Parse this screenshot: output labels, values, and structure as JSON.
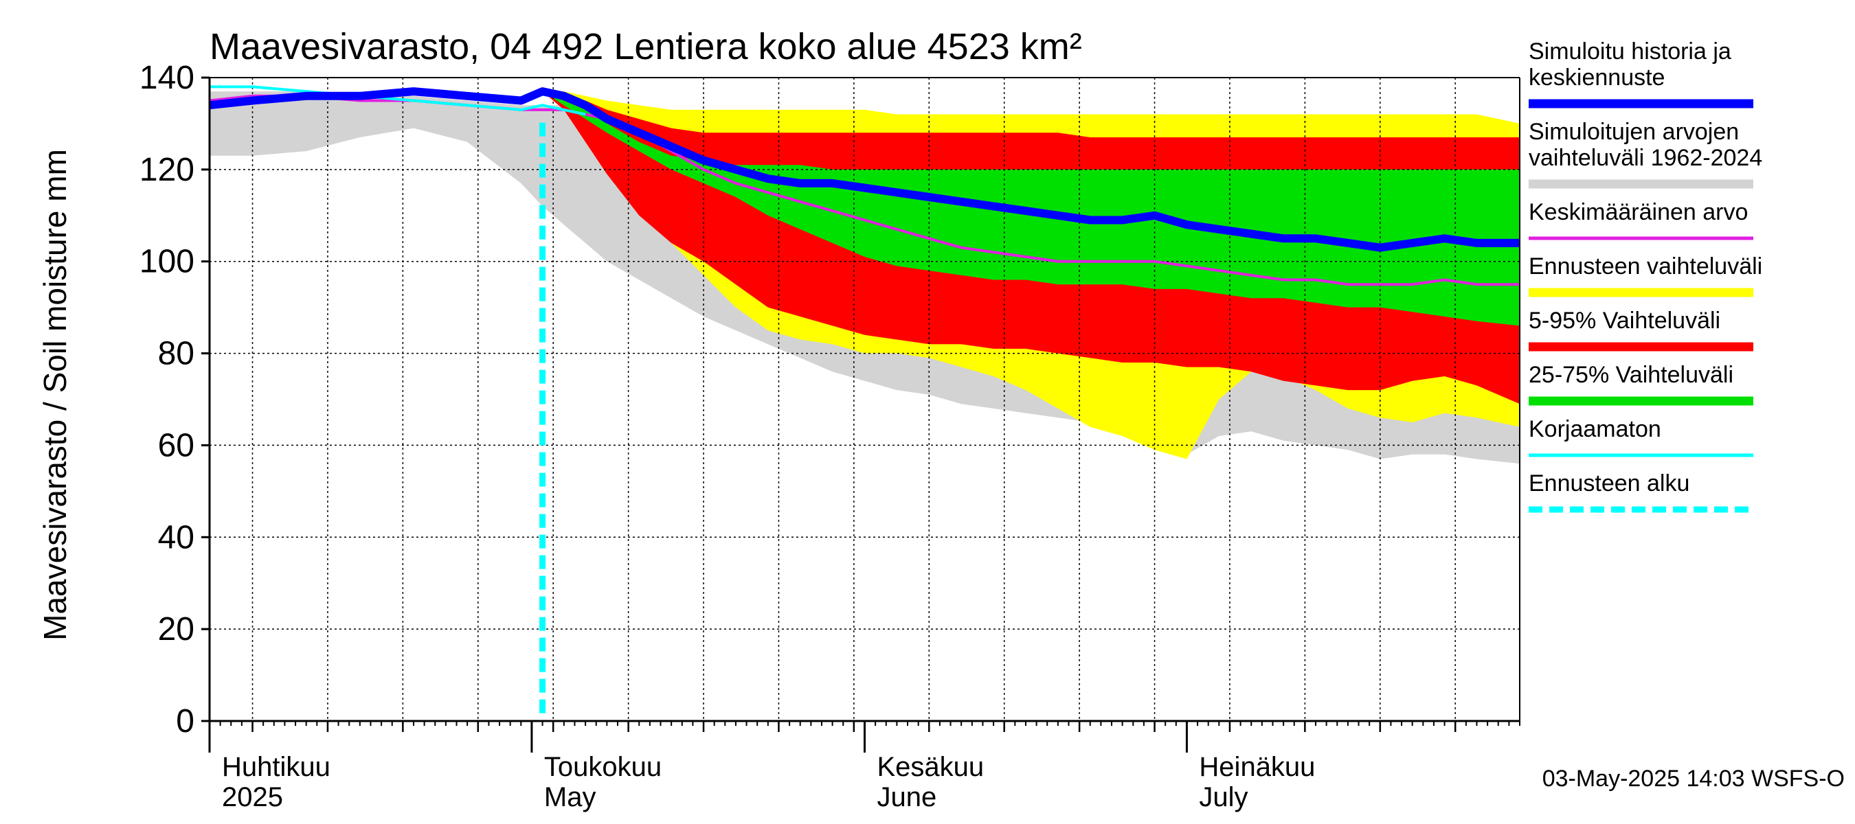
{
  "chart_data": {
    "type": "area",
    "title": "Maavesivarasto, 04 492 Lentiera koko alue 4523 km²",
    "ylabel": "Maavesivarasto / Soil moisture   mm",
    "xlabel": "",
    "ylim": [
      0,
      140
    ],
    "yticks": [
      0,
      20,
      40,
      60,
      80,
      100,
      120,
      140
    ],
    "grid": true,
    "x_unit": "day of year 2025",
    "xlim": [
      91,
      213
    ],
    "forecast_start_day": 122,
    "months": [
      {
        "fi": "Huhtikuu",
        "en": "2025",
        "day": 91
      },
      {
        "fi": "Toukokuu",
        "en": "May",
        "day": 121
      },
      {
        "fi": "Kesäkuu",
        "en": "June",
        "day": 152
      },
      {
        "fi": "Heinäkuu",
        "en": "July",
        "day": 182
      }
    ],
    "x": [
      91,
      95,
      100,
      105,
      110,
      115,
      120,
      122,
      124,
      126,
      128,
      131,
      134,
      137,
      140,
      143,
      146,
      149,
      152,
      155,
      158,
      161,
      164,
      167,
      170,
      173,
      176,
      179,
      182,
      185,
      188,
      191,
      194,
      197,
      200,
      203,
      206,
      209,
      213
    ],
    "series": [
      {
        "name": "hist_range",
        "label": "Simuloitujen arvojen vaihteluväli 1962-2024",
        "color": "#d3d3d3",
        "upper": [
          137,
          137,
          137,
          136,
          136,
          135,
          134,
          134,
          134,
          134,
          133,
          133,
          133,
          132,
          132,
          131,
          131,
          130,
          130,
          130,
          129,
          129,
          129,
          129,
          129,
          129,
          128,
          128,
          128,
          128,
          128,
          128,
          128,
          128,
          128,
          128,
          128,
          128,
          128
        ],
        "lower": [
          123,
          123,
          124,
          127,
          129,
          126,
          117,
          112,
          108,
          104,
          100,
          96,
          92,
          88,
          85,
          82,
          79,
          76,
          74,
          72,
          71,
          69,
          68,
          67,
          66,
          65,
          63,
          60,
          58,
          62,
          63,
          61,
          60,
          59,
          57,
          58,
          58,
          57,
          56
        ]
      },
      {
        "name": "ens_range",
        "label": "Ennusteen vaihteluväli",
        "color": "#ffff00",
        "upper": [
          null,
          null,
          null,
          null,
          null,
          null,
          null,
          137,
          137,
          136,
          135,
          134,
          133,
          133,
          133,
          133,
          133,
          133,
          133,
          132,
          132,
          132,
          132,
          132,
          132,
          132,
          132,
          132,
          132,
          132,
          132,
          132,
          132,
          132,
          132,
          132,
          132,
          132,
          130
        ],
        "lower": [
          null,
          null,
          null,
          null,
          null,
          null,
          null,
          137,
          135,
          130,
          123,
          113,
          104,
          97,
          90,
          85,
          83,
          82,
          80,
          80,
          79,
          77,
          75,
          72,
          68,
          64,
          62,
          59,
          57,
          70,
          76,
          75,
          72,
          68,
          66,
          65,
          67,
          66,
          64
        ]
      },
      {
        "name": "p5_95",
        "label": "5-95% Vaihteluväli",
        "color": "#ff0000",
        "upper": [
          null,
          null,
          null,
          null,
          null,
          null,
          null,
          137,
          136,
          135,
          133,
          131,
          129,
          128,
          128,
          128,
          128,
          128,
          128,
          128,
          128,
          128,
          128,
          128,
          128,
          127,
          127,
          127,
          127,
          127,
          127,
          127,
          127,
          127,
          127,
          127,
          127,
          127,
          127
        ],
        "lower": [
          null,
          null,
          null,
          null,
          null,
          null,
          null,
          137,
          133,
          126,
          119,
          110,
          104,
          100,
          95,
          90,
          88,
          86,
          84,
          83,
          82,
          82,
          81,
          81,
          80,
          79,
          78,
          78,
          77,
          77,
          76,
          74,
          73,
          72,
          72,
          74,
          75,
          73,
          69
        ]
      },
      {
        "name": "p25_75",
        "label": "25-75% Vaihteluväli",
        "color": "#00e000",
        "upper": [
          null,
          null,
          null,
          null,
          null,
          null,
          null,
          137,
          135,
          133,
          130,
          126,
          123,
          122,
          121,
          121,
          121,
          120,
          120,
          120,
          120,
          120,
          120,
          120,
          120,
          120,
          120,
          120,
          120,
          120,
          120,
          120,
          120,
          120,
          120,
          120,
          120,
          120,
          120
        ],
        "lower": [
          null,
          null,
          null,
          null,
          null,
          null,
          null,
          137,
          134,
          131,
          128,
          124,
          120,
          117,
          114,
          110,
          107,
          104,
          101,
          99,
          98,
          97,
          96,
          96,
          95,
          95,
          95,
          94,
          94,
          93,
          92,
          92,
          91,
          90,
          90,
          89,
          88,
          87,
          86
        ]
      },
      {
        "name": "median",
        "label": "Simuloitu historia ja keskiennuste",
        "color": "#0000ff",
        "values": [
          134,
          135,
          136,
          136,
          137,
          136,
          135,
          137,
          136,
          134,
          131,
          128,
          125,
          122,
          120,
          118,
          117,
          117,
          116,
          115,
          114,
          113,
          112,
          111,
          110,
          109,
          109,
          110,
          108,
          107,
          106,
          105,
          105,
          104,
          103,
          104,
          105,
          104,
          104
        ]
      },
      {
        "name": "mean",
        "label": "Keskimääräinen arvo",
        "color": "#e020e0",
        "values": [
          135,
          136,
          136,
          135,
          135,
          134,
          133,
          133,
          133,
          132,
          131,
          128,
          124,
          120,
          117,
          115,
          113,
          111,
          109,
          107,
          105,
          103,
          102,
          101,
          100,
          100,
          100,
          100,
          99,
          98,
          97,
          96,
          96,
          95,
          95,
          95,
          96,
          95,
          95
        ]
      },
      {
        "name": "uncorrected",
        "label": "Korjaamaton",
        "color": "#00ffff",
        "values": [
          138,
          138,
          137,
          136,
          135,
          134,
          133,
          134,
          133,
          132,
          null,
          null,
          null,
          null,
          null,
          null,
          null,
          null,
          null,
          null,
          null,
          null,
          null,
          null,
          null,
          null,
          null,
          null,
          null,
          null,
          null,
          null,
          null,
          null,
          null,
          null,
          null,
          null,
          null
        ]
      }
    ],
    "legend": [
      {
        "label": "Simuloitu historia ja keskiennuste",
        "color": "#0000ff",
        "style": "thick"
      },
      {
        "label": "Simuloitujen arvojen vaihteluväli 1962-2024",
        "color": "#d3d3d3",
        "style": "thick"
      },
      {
        "label": "Keskimääräinen arvo",
        "color": "#e020e0",
        "style": "thin"
      },
      {
        "label": "Ennusteen vaihteluväli",
        "color": "#ffff00",
        "style": "thick"
      },
      {
        "label": "5-95% Vaihteluväli",
        "color": "#ff0000",
        "style": "thick"
      },
      {
        "label": "25-75% Vaihteluväli",
        "color": "#00e000",
        "style": "thick"
      },
      {
        "label": "Korjaamaton",
        "color": "#00ffff",
        "style": "thin"
      },
      {
        "label": "Ennusteen alku",
        "color": "#00ffff",
        "style": "dashed"
      }
    ],
    "footer": "03-May-2025 14:03 WSFS-O"
  }
}
